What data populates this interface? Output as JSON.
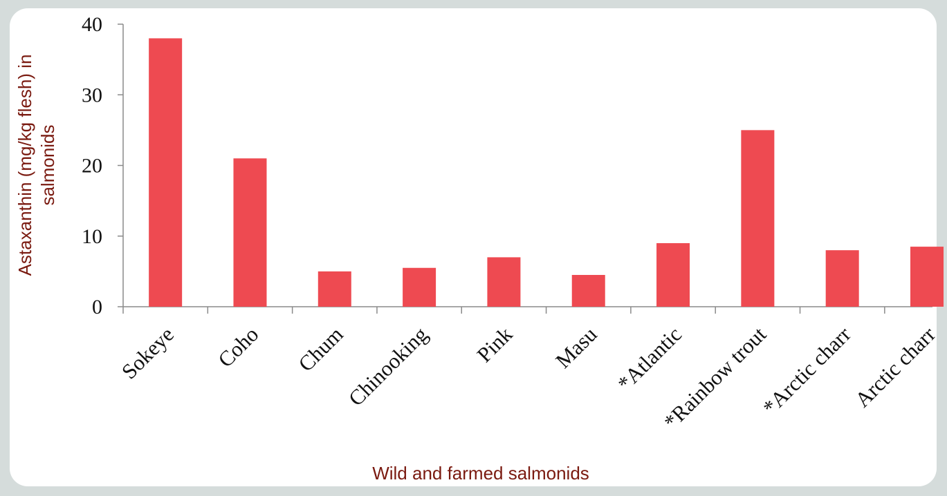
{
  "chart_data": {
    "type": "bar",
    "title": "",
    "xlabel": "Wild and farmed salmonids",
    "ylabel_lines": [
      "Astaxanthin (mg/kg flesh) in",
      "salmonids"
    ],
    "categories": [
      "Sokeye",
      "Coho",
      "Chum",
      "Chinooking",
      "Pink",
      "Masu",
      "*Atlantic",
      "*Rainbow trout",
      "*Arctic charr",
      "Arctic charr"
    ],
    "values": [
      38,
      21,
      5,
      5.5,
      7,
      4.5,
      9,
      25,
      8,
      8.5
    ],
    "ylim": [
      0,
      40
    ],
    "yticks": [
      0,
      10,
      20,
      30,
      40
    ],
    "grid": false,
    "legend": "none",
    "bar_color": "#ee4a51",
    "axis_title_color": "#7a1a10"
  }
}
